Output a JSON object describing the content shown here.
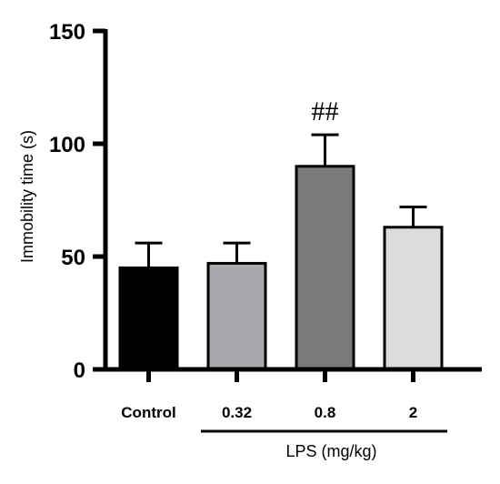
{
  "chart_data": {
    "type": "bar",
    "categories": [
      "Control",
      "0.32",
      "0.8",
      "2"
    ],
    "values": [
      45,
      47,
      90,
      63
    ],
    "errors": [
      11,
      9,
      14,
      9
    ],
    "colors": [
      "#000000",
      "#a9a9ad",
      "#7a7a7a",
      "#dcdcdc"
    ],
    "ylabel": "Immobility time (s)",
    "ylim": [
      0,
      150
    ],
    "yticks": [
      "0",
      "50",
      "100",
      "150"
    ],
    "group_label": "LPS (mg/kg)",
    "annotation": {
      "category": "0.8",
      "text": "##"
    },
    "grid": false,
    "legend": "none"
  }
}
